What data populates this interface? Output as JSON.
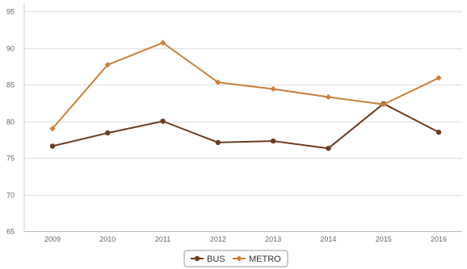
{
  "chart_data": {
    "type": "line",
    "title": "",
    "xlabel": "",
    "ylabel": "",
    "categories": [
      "2009",
      "2010",
      "2011",
      "2012",
      "2013",
      "2014",
      "2015",
      "2016"
    ],
    "ylim": [
      65,
      95
    ],
    "yticks": [
      65,
      70,
      75,
      80,
      85,
      90,
      95
    ],
    "grid": true,
    "legend_position": "bottom-center",
    "series": [
      {
        "name": "BUS",
        "color": "#6b3d22",
        "values": [
          76.6,
          78.4,
          80.0,
          77.1,
          77.3,
          76.3,
          82.4,
          78.5
        ]
      },
      {
        "name": "METRO",
        "color": "#c9803c",
        "values": [
          79.0,
          87.7,
          90.7,
          85.3,
          84.4,
          83.3,
          82.3,
          85.9
        ]
      }
    ]
  }
}
